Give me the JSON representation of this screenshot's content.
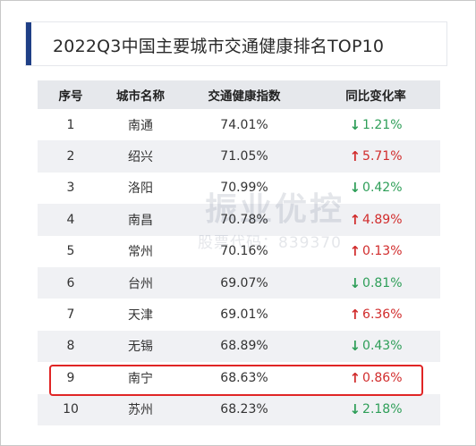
{
  "title": "2022Q3中国主要城市交通健康排名TOP10",
  "table": {
    "headers": [
      "序号",
      "城市名称",
      "交通健康指数",
      "同比变化率"
    ],
    "rows": [
      {
        "rank": "1",
        "city": "南通",
        "index": "74.01%",
        "change": "1.21%",
        "direction": "down"
      },
      {
        "rank": "2",
        "city": "绍兴",
        "index": "71.05%",
        "change": "5.71%",
        "direction": "up"
      },
      {
        "rank": "3",
        "city": "洛阳",
        "index": "70.99%",
        "change": "0.42%",
        "direction": "down"
      },
      {
        "rank": "4",
        "city": "南昌",
        "index": "70.78%",
        "change": "4.89%",
        "direction": "up"
      },
      {
        "rank": "5",
        "city": "常州",
        "index": "70.16%",
        "change": "0.13%",
        "direction": "up"
      },
      {
        "rank": "6",
        "city": "台州",
        "index": "69.07%",
        "change": "0.81%",
        "direction": "down"
      },
      {
        "rank": "7",
        "city": "天津",
        "index": "69.01%",
        "change": "6.36%",
        "direction": "up"
      },
      {
        "rank": "8",
        "city": "无锡",
        "index": "68.89%",
        "change": "0.43%",
        "direction": "down"
      },
      {
        "rank": "9",
        "city": "南宁",
        "index": "68.63%",
        "change": "0.86%",
        "direction": "up"
      },
      {
        "rank": "10",
        "city": "苏州",
        "index": "68.23%",
        "change": "2.18%",
        "direction": "down"
      }
    ]
  },
  "arrows": {
    "up": "↑",
    "down": "↓"
  },
  "watermark": {
    "main": "振业优控",
    "sub": "股票代码：839370"
  },
  "colors": {
    "up": "#d12c2c",
    "down": "#2e9e58",
    "accent": "#1f3f86",
    "highlight": "#e02525"
  }
}
